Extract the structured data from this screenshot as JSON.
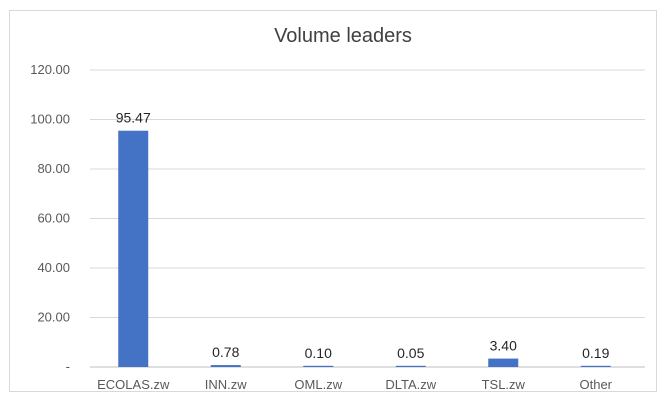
{
  "chart_data": {
    "type": "bar",
    "title": "Volume leaders",
    "categories": [
      "ECOLAS.zw",
      "INN.zw",
      "OML.zw",
      "DLTA.zw",
      "TSL.zw",
      "Other"
    ],
    "values": [
      95.47,
      0.78,
      0.1,
      0.05,
      3.4,
      0.19
    ],
    "data_labels": [
      "95.47",
      "0.78",
      "0.10",
      "0.05",
      "3.40",
      "0.19"
    ],
    "y_ticks": [
      0,
      20,
      40,
      60,
      80,
      100,
      120
    ],
    "y_tick_labels": [
      "-",
      "20.00",
      "40.00",
      "60.00",
      "80.00",
      "100.00",
      "120.00"
    ],
    "ylim": [
      0,
      120
    ],
    "grid": true,
    "legend": "none",
    "xlabel": "",
    "ylabel": "",
    "colors": {
      "bar": "#4472c4",
      "grid": "#d9d9d9",
      "axis": "#bfbfbf"
    }
  }
}
